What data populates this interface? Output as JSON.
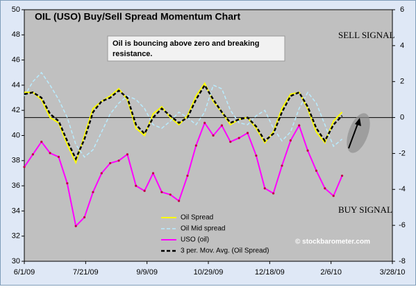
{
  "chart_data": {
    "type": "line",
    "title": "OIL (USO) Buy/Sell Spread Momentum Chart",
    "annotation": [
      "Oil is bouncing above zero and breaking",
      "resistance."
    ],
    "sell_label": "SELL SIGNAL",
    "buy_label": "BUY SIGNAL",
    "credit": "© stockbarometer.com",
    "x": [
      "6/1/09",
      "6/8/09",
      "6/15/09",
      "6/22/09",
      "6/29/09",
      "7/6/09",
      "7/13/09",
      "7/20/09",
      "7/27/09",
      "8/3/09",
      "8/10/09",
      "8/17/09",
      "8/24/09",
      "8/31/09",
      "9/7/09",
      "9/14/09",
      "9/21/09",
      "9/28/09",
      "10/5/09",
      "10/12/09",
      "10/19/09",
      "10/26/09",
      "11/2/09",
      "11/9/09",
      "11/16/09",
      "11/23/09",
      "11/30/09",
      "12/7/09",
      "12/14/09",
      "12/21/09",
      "12/28/09",
      "1/4/10",
      "1/11/10",
      "1/18/10",
      "1/25/10",
      "2/1/10",
      "2/8/10",
      "2/15/10"
    ],
    "xlim": [
      "6/1/09",
      "3/28/10"
    ],
    "xticks": [
      "6/1/09",
      "7/21/09",
      "9/9/09",
      "10/29/09",
      "12/18/09",
      "2/6/10",
      "3/28/10"
    ],
    "ylim": [
      30,
      50
    ],
    "yticks": [
      30,
      32,
      34,
      36,
      38,
      40,
      42,
      44,
      46,
      48,
      50
    ],
    "y2lim": [
      -8,
      6
    ],
    "y2ticks": [
      -8,
      -6,
      -4,
      -2,
      0,
      2,
      4,
      6
    ],
    "series": [
      {
        "name": "Oil Spread",
        "color": "#ffff00",
        "axis": "y2",
        "dash": false,
        "values": [
          1.4,
          1.4,
          1.0,
          0.0,
          -0.3,
          -1.5,
          -2.5,
          -1.0,
          0.5,
          0.9,
          1.2,
          1.6,
          1.0,
          -0.6,
          -1.0,
          0.2,
          0.6,
          0.0,
          -0.4,
          0.1,
          1.2,
          1.9,
          0.9,
          0.3,
          -0.4,
          -0.1,
          0.0,
          -0.6,
          -1.4,
          -0.8,
          0.5,
          1.3,
          1.4,
          0.5,
          -0.8,
          -1.4,
          -0.2,
          0.3
        ]
      },
      {
        "name": "Oil Mid spread",
        "color": "#b8ecff",
        "axis": "y2",
        "dash": true,
        "values": [
          1.2,
          2.0,
          2.5,
          1.8,
          1.0,
          0.0,
          -1.5,
          -2.2,
          -1.8,
          -0.8,
          0.2,
          0.8,
          1.2,
          1.0,
          0.5,
          -0.4,
          -0.6,
          -0.2,
          0.3,
          0.0,
          -0.4,
          0.3,
          1.8,
          1.6,
          0.4,
          -0.3,
          -0.4,
          0.1,
          0.4,
          -0.6,
          -1.3,
          -0.8,
          0.5,
          1.4,
          0.8,
          -0.4,
          -1.6,
          -1.2
        ]
      },
      {
        "name": "USO (oil)",
        "color": "#ff00ff",
        "axis": "y",
        "dash": false,
        "markers": true,
        "values": [
          37.5,
          38.5,
          39.5,
          38.6,
          38.3,
          36.2,
          32.8,
          33.5,
          35.5,
          37.0,
          37.8,
          38.0,
          38.5,
          36.0,
          35.6,
          37.0,
          35.5,
          35.3,
          34.8,
          36.8,
          39.2,
          41.0,
          40.0,
          40.8,
          39.5,
          39.8,
          40.2,
          38.4,
          35.8,
          35.4,
          37.6,
          39.6,
          40.8,
          38.8,
          37.2,
          35.8,
          35.2,
          36.8
        ]
      },
      {
        "name": "3 per. Mov. Avg. (Oil Spread)",
        "color": "#000000",
        "axis": "y2",
        "dash": true,
        "values": [
          1.3,
          1.4,
          1.1,
          0.2,
          -0.2,
          -1.3,
          -2.3,
          -1.2,
          0.3,
          0.9,
          1.1,
          1.5,
          1.1,
          -0.4,
          -0.9,
          0.0,
          0.5,
          0.1,
          -0.3,
          0.0,
          1.0,
          1.8,
          1.0,
          0.3,
          -0.3,
          -0.1,
          0.0,
          -0.5,
          -1.3,
          -0.9,
          0.3,
          1.2,
          1.4,
          0.6,
          -0.6,
          -1.3,
          -0.4,
          0.1
        ]
      }
    ],
    "grid": false
  }
}
